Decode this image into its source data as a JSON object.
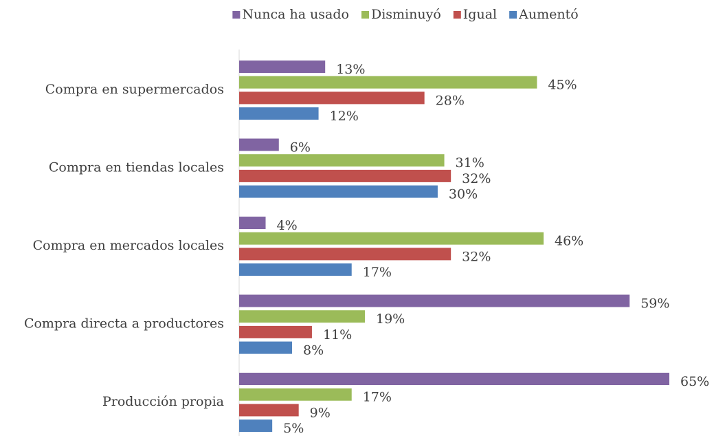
{
  "chart_data": {
    "type": "hbar",
    "categories": [
      "Compra en supermercados",
      "Compra en tiendas locales",
      "Compra en mercados locales",
      "Compra directa a productores",
      "Producción propia"
    ],
    "series": [
      {
        "name": "Nunca ha usado",
        "color": "#8064a2",
        "values": [
          13,
          6,
          4,
          59,
          65
        ],
        "value_labels": [
          "13%",
          "6%",
          "4%",
          "59%",
          "65%"
        ]
      },
      {
        "name": "Disminuyó",
        "color": "#9bbb59",
        "values": [
          45,
          31,
          46,
          19,
          17
        ],
        "value_labels": [
          "45%",
          "31%",
          "46%",
          "19%",
          "17%"
        ]
      },
      {
        "name": "Igual",
        "color": "#c0504d",
        "values": [
          28,
          32,
          32,
          11,
          9
        ],
        "value_labels": [
          "28%",
          "32%",
          "32%",
          "11%",
          "9%"
        ]
      },
      {
        "name": "Aumentó",
        "color": "#4f81bd",
        "values": [
          12,
          30,
          17,
          8,
          5
        ],
        "value_labels": [
          "12%",
          "30%",
          "17%",
          "8%",
          "5%"
        ]
      }
    ],
    "legend": "top"
  }
}
